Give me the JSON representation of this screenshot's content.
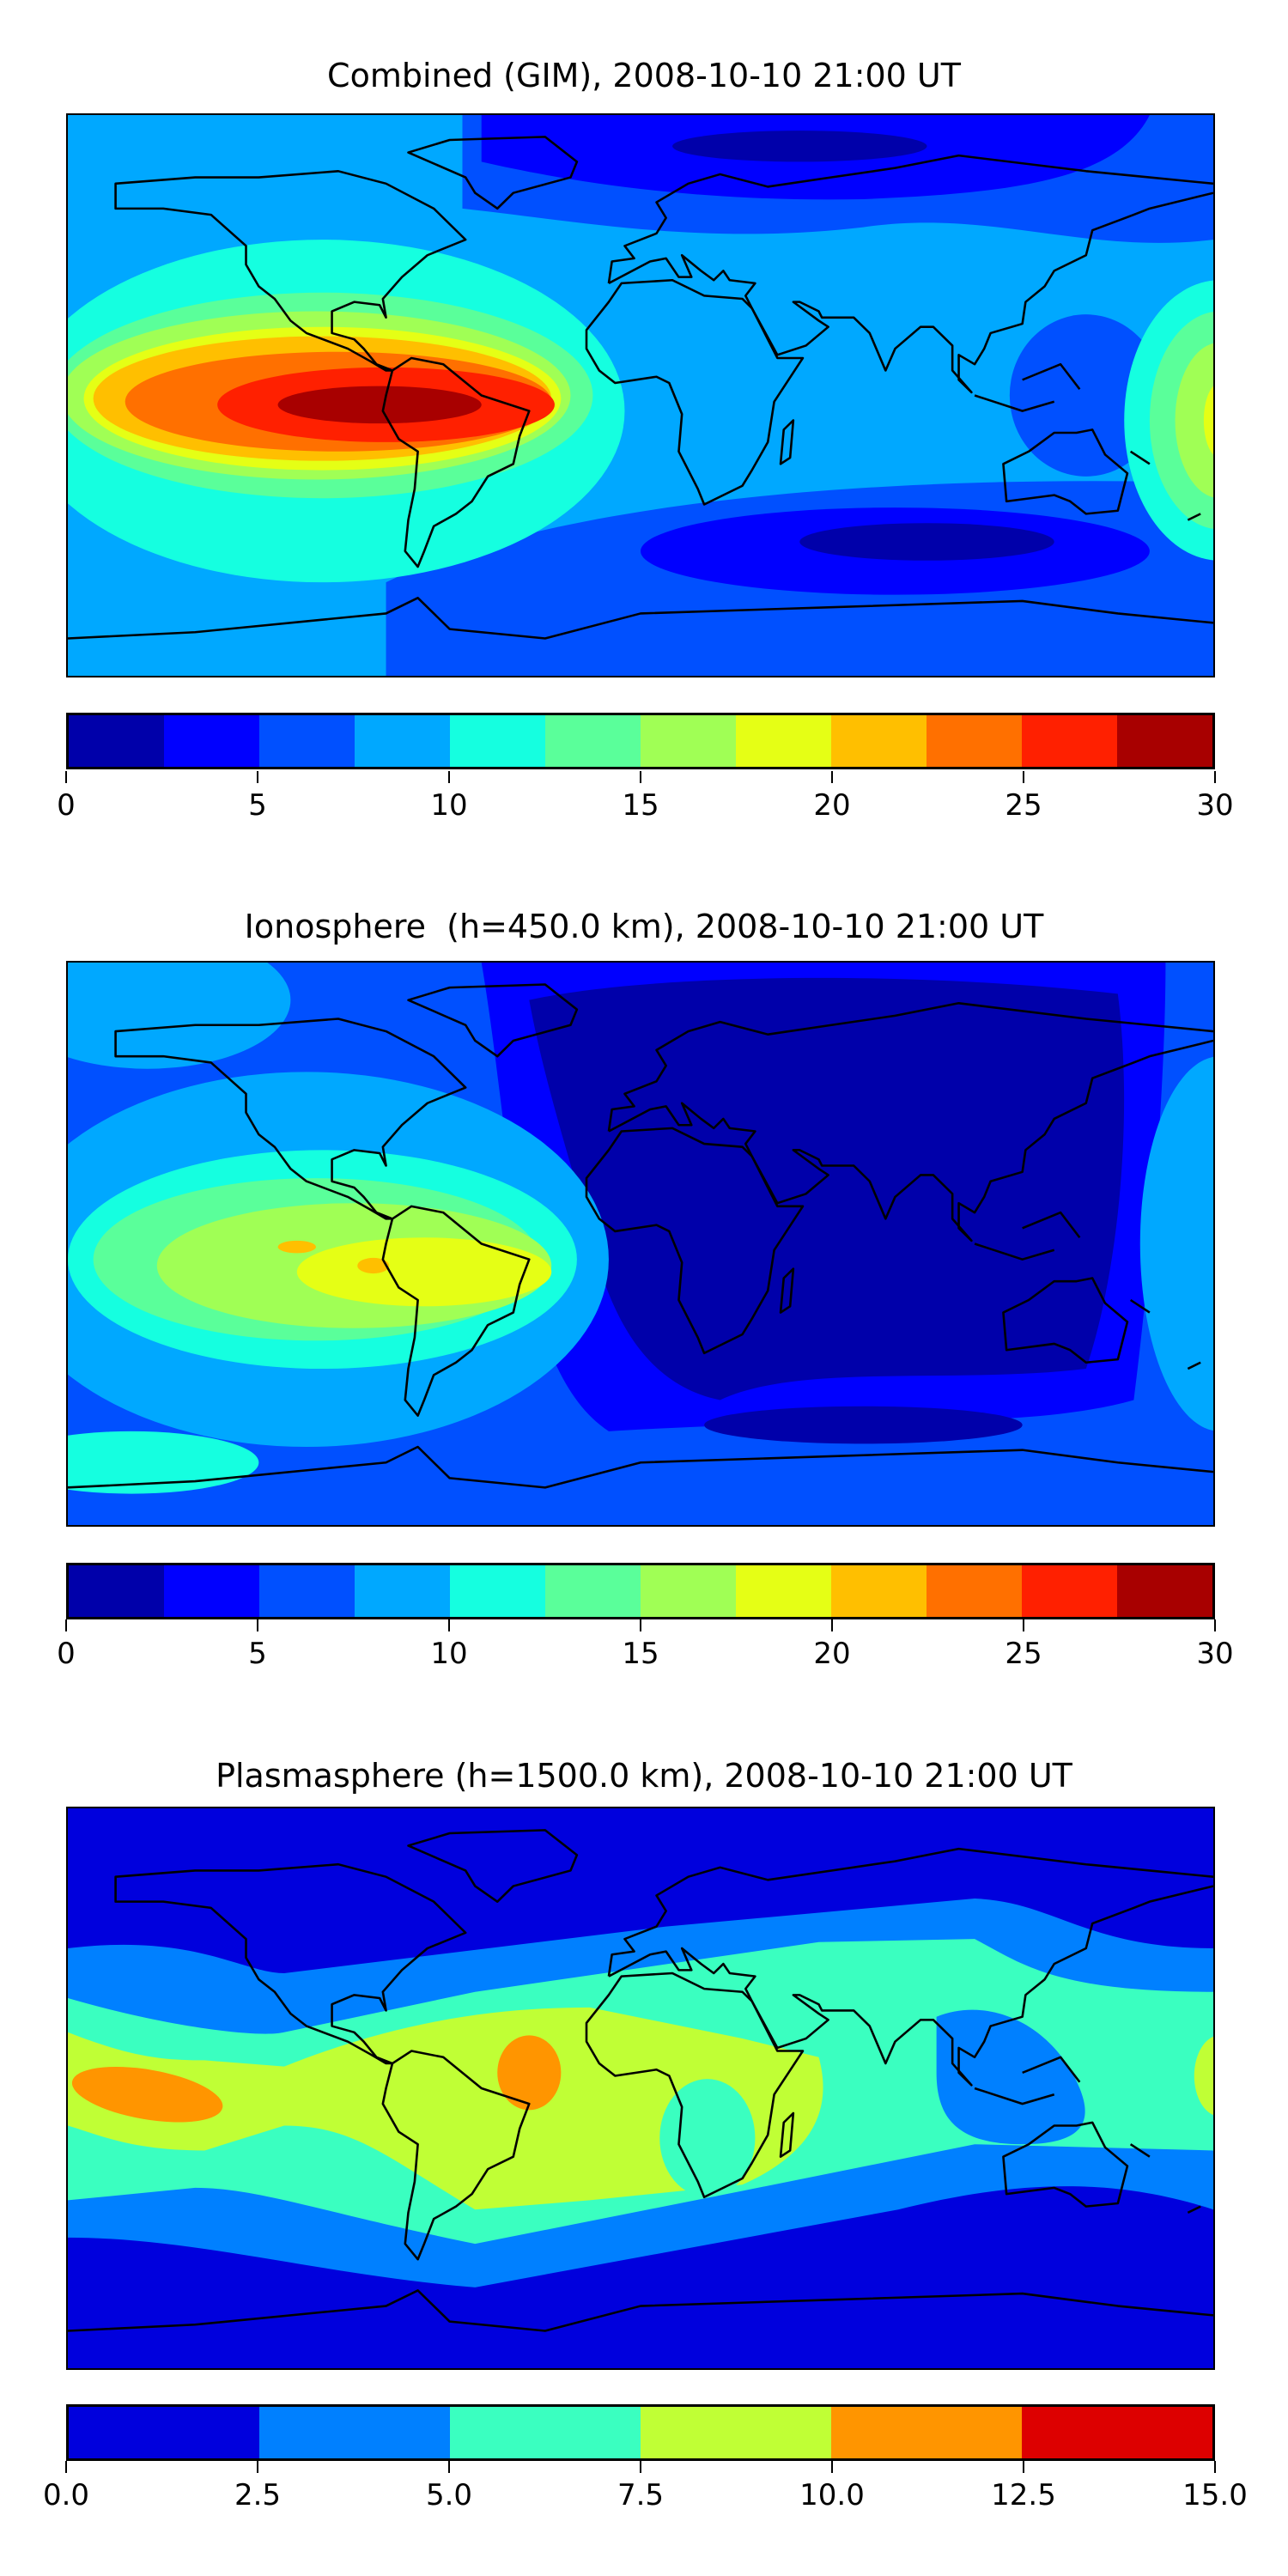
{
  "chart_data": [
    {
      "type": "heatmap",
      "title": "Combined (GIM), 2008-10-10 21:00 UT",
      "projection": "world map (lon/lat) with coastlines",
      "colorbar": {
        "levels": [
          0,
          2.5,
          5,
          7.5,
          10,
          12.5,
          15,
          17.5,
          20,
          22.5,
          25,
          27.5,
          30
        ],
        "range": [
          0,
          30
        ],
        "colors": [
          "#0000aa",
          "#0000ff",
          "#0050ff",
          "#00a8ff",
          "#15ffe0",
          "#5aff9a",
          "#a0ff55",
          "#e5ff15",
          "#ffbf00",
          "#ff7000",
          "#ff2000",
          "#a80000"
        ],
        "ticks": [
          0,
          5,
          10,
          15,
          20,
          25,
          30
        ],
        "tick_labels": [
          "0",
          "5",
          "10",
          "15",
          "20",
          "25",
          "30"
        ]
      },
      "features": {
        "max_region": "South America / tropical East Pacific (27.5-30)",
        "min_region": "North Eurasia, Southern Indian Ocean (0-2.5)"
      }
    },
    {
      "type": "heatmap",
      "title": "Ionosphere  (h=450.0 km), 2008-10-10 21:00 UT",
      "projection": "world map (lon/lat) with coastlines",
      "colorbar": {
        "levels": [
          0,
          2.5,
          5,
          7.5,
          10,
          12.5,
          15,
          17.5,
          20,
          22.5,
          25,
          27.5,
          30
        ],
        "range": [
          0,
          30
        ],
        "colors": [
          "#0000aa",
          "#0000ff",
          "#0050ff",
          "#00a8ff",
          "#15ffe0",
          "#5aff9a",
          "#a0ff55",
          "#e5ff15",
          "#ffbf00",
          "#ff7000",
          "#ff2000",
          "#a80000"
        ],
        "ticks": [
          0,
          5,
          10,
          15,
          20,
          25,
          30
        ],
        "tick_labels": [
          "0",
          "5",
          "10",
          "15",
          "20",
          "25",
          "30"
        ]
      },
      "features": {
        "max_region": "East Pacific / South America (20-22.5)",
        "min_region": "Africa, Eurasia, Indian Ocean (0-2.5)"
      }
    },
    {
      "type": "heatmap",
      "title": "Plasmasphere (h=1500.0 km), 2008-10-10 21:00 UT",
      "projection": "world map (lon/lat) with coastlines",
      "colorbar": {
        "levels": [
          0,
          2.5,
          5,
          7.5,
          10,
          12.5,
          15
        ],
        "range": [
          0,
          15
        ],
        "colors": [
          "#0000dd",
          "#0080ff",
          "#3affc0",
          "#c0ff35",
          "#ff9500",
          "#dd0000"
        ],
        "ticks": [
          0,
          2.5,
          5,
          7.5,
          10,
          12.5,
          15
        ],
        "tick_labels": [
          "0.0",
          "2.5",
          "5.0",
          "7.5",
          "10.0",
          "12.5",
          "15.0"
        ]
      },
      "features": {
        "max_region": "Central Pacific and tropical Atlantic (10-12.5)",
        "min_region": "High latitudes (0-2.5)"
      }
    }
  ]
}
